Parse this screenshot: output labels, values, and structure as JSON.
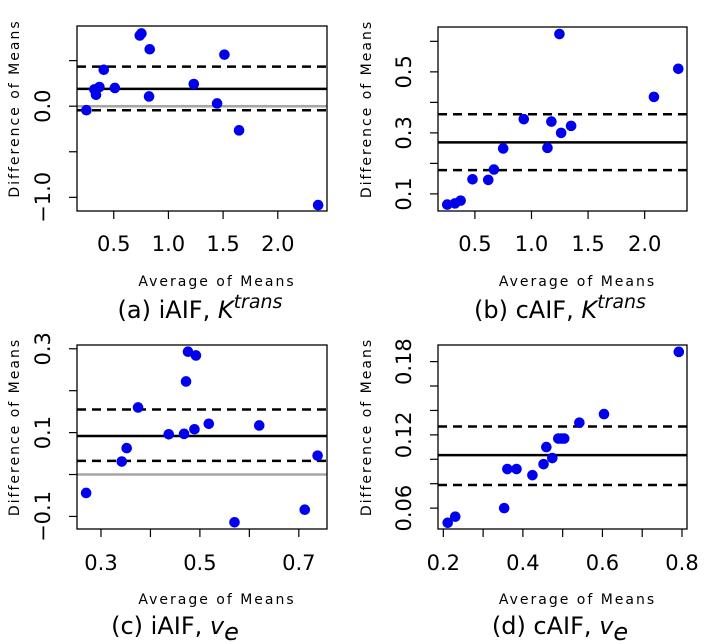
{
  "chart_data": [
    {
      "type": "scatter",
      "panel": "a",
      "caption": {
        "prefix": "(a) iAIF, ",
        "symbol": "K",
        "superscript": "trans",
        "subscript": ""
      },
      "xlabel": "Average of Means",
      "ylabel": "Difference of Means",
      "xlim": [
        0.164,
        2.45
      ],
      "ylim": [
        -1.15,
        0.88
      ],
      "xticks": [
        0.5,
        1.0,
        1.5,
        2.0
      ],
      "xtick_labels": [
        "0.5",
        "1.0",
        "1.5",
        "2.0"
      ],
      "yticks": [
        -1.0,
        -0.5,
        0.0,
        0.5
      ],
      "ytick_labels": [
        "-1.0",
        "",
        "0.0",
        ""
      ],
      "mean_line": 0.19,
      "limits": [
        -0.044,
        0.434
      ],
      "zero_line": 0.0,
      "x": [
        0.25,
        0.323,
        0.338,
        0.369,
        0.409,
        0.51,
        0.738,
        0.753,
        0.829,
        0.823,
        1.232,
        1.445,
        1.512,
        1.646,
        2.369
      ],
      "y": [
        -0.044,
        0.184,
        0.125,
        0.21,
        0.4,
        0.2,
        0.776,
        0.798,
        0.625,
        0.107,
        0.243,
        0.03,
        0.566,
        -0.265,
        -1.085
      ]
    },
    {
      "type": "scatter",
      "panel": "b",
      "caption": {
        "prefix": "(b) cAIF, ",
        "symbol": "K",
        "superscript": "trans",
        "subscript": ""
      },
      "xlabel": "Average of Means",
      "ylabel": "Difference of Means",
      "xlim": [
        0.174,
        2.374
      ],
      "ylim": [
        0.044,
        0.647
      ],
      "xticks": [
        0.5,
        1.0,
        1.5,
        2.0
      ],
      "xtick_labels": [
        "0.5",
        "1.0",
        "1.5",
        "2.0"
      ],
      "yticks": [
        0.1,
        0.2,
        0.3,
        0.4,
        0.5,
        0.6
      ],
      "ytick_labels": [
        "0.1",
        "",
        "0.3",
        "",
        "0.5",
        ""
      ],
      "mean_line": 0.269,
      "limits": [
        0.178,
        0.361
      ],
      "zero_line": null,
      "x": [
        0.256,
        0.324,
        0.374,
        0.479,
        0.618,
        0.668,
        0.75,
        0.932,
        1.141,
        1.176,
        1.262,
        1.35,
        1.247,
        2.082,
        2.297
      ],
      "y": [
        0.065,
        0.069,
        0.078,
        0.148,
        0.146,
        0.18,
        0.249,
        0.345,
        0.251,
        0.337,
        0.3,
        0.323,
        0.624,
        0.418,
        0.51
      ]
    },
    {
      "type": "scatter",
      "panel": "c",
      "caption": {
        "prefix": "(c) iAIF, ",
        "symbol": "v",
        "superscript": "",
        "subscript": "e"
      },
      "xlabel": "Average of Means",
      "ylabel": "Difference of Means",
      "xlim": [
        0.2515,
        0.757
      ],
      "ylim": [
        -0.13,
        0.309
      ],
      "xticks": [
        0.3,
        0.4,
        0.5,
        0.6,
        0.7
      ],
      "xtick_labels": [
        "0.3",
        "",
        "0.5",
        "",
        "0.7"
      ],
      "yticks": [
        -0.1,
        0.0,
        0.1,
        0.2,
        0.3
      ],
      "ytick_labels": [
        "-0.1",
        "",
        "0.1",
        "",
        "0.3"
      ],
      "mean_line": 0.092,
      "limits": [
        0.0325,
        0.155
      ],
      "zero_line": 0.0,
      "x": [
        0.27,
        0.342,
        0.352,
        0.375,
        0.437,
        0.468,
        0.489,
        0.518,
        0.472,
        0.476,
        0.492,
        0.57,
        0.62,
        0.712,
        0.738
      ],
      "y": [
        -0.044,
        0.031,
        0.063,
        0.16,
        0.096,
        0.097,
        0.108,
        0.121,
        0.222,
        0.293,
        0.284,
        -0.114,
        0.117,
        -0.084,
        0.045
      ]
    },
    {
      "type": "scatter",
      "panel": "d",
      "caption": {
        "prefix": "(d) cAIF, ",
        "symbol": "v",
        "superscript": "",
        "subscript": "e"
      },
      "xlabel": "Average of Means",
      "ylabel": "Difference of Means",
      "xlim": [
        0.1866,
        0.8126
      ],
      "ylim": [
        0.0429,
        0.1936
      ],
      "xticks": [
        0.2,
        0.3,
        0.4,
        0.5,
        0.6,
        0.7,
        0.8
      ],
      "xtick_labels": [
        "0.2",
        "",
        "0.4",
        "",
        "0.6",
        "",
        "0.8"
      ],
      "yticks": [
        0.06,
        0.08,
        0.1,
        0.12,
        0.14,
        0.16,
        0.18
      ],
      "ytick_labels": [
        "0.06",
        "",
        "",
        "0.12",
        "",
        "",
        "0.18"
      ],
      "mean_line": 0.1034,
      "limits": [
        0.0789,
        0.1268
      ],
      "zero_line": null,
      "x": [
        0.211,
        0.23,
        0.353,
        0.361,
        0.384,
        0.424,
        0.452,
        0.474,
        0.459,
        0.489,
        0.497,
        0.504,
        0.542,
        0.604,
        0.792
      ],
      "y": [
        0.048,
        0.053,
        0.06,
        0.092,
        0.092,
        0.087,
        0.096,
        0.101,
        0.11,
        0.117,
        0.117,
        0.117,
        0.13,
        0.137,
        0.188
      ]
    }
  ],
  "colors": {
    "points": "#0000ee",
    "mean_line": "#000000",
    "limit_lines": "#000000",
    "zero_line": "#a6a6a6"
  }
}
